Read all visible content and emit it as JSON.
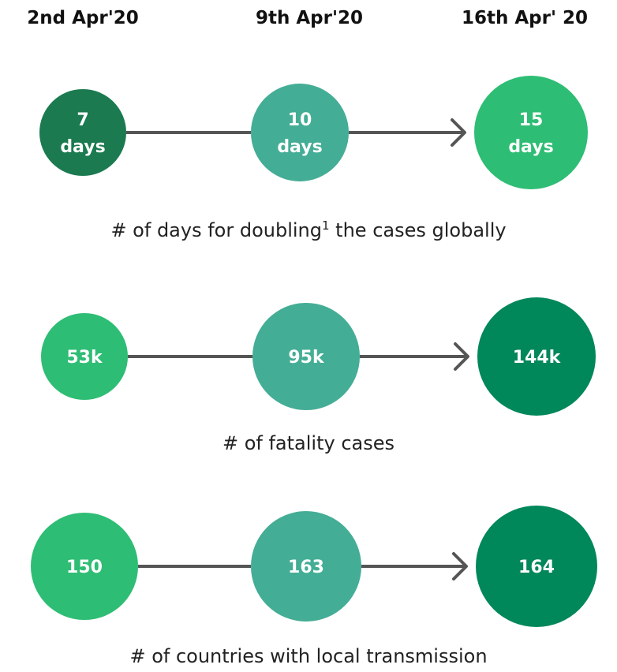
{
  "header": {
    "dates": [
      "2nd Apr'20",
      "9th Apr'20",
      "16th Apr' 20"
    ]
  },
  "rows": [
    {
      "circles": [
        [
          "7",
          "days"
        ],
        [
          "10",
          "days"
        ],
        [
          "15",
          "days"
        ]
      ],
      "caption": {
        "before": "# of days for doubling",
        "sup": "1",
        "after": " the cases globally"
      }
    },
    {
      "circles": [
        [
          "53k"
        ],
        [
          "95k"
        ],
        [
          "144k"
        ]
      ],
      "caption": {
        "before": "# of fatality cases"
      }
    },
    {
      "circles": [
        [
          "150"
        ],
        [
          "163"
        ],
        [
          "164"
        ]
      ],
      "caption": {
        "before": "# of countries with local transmission"
      }
    }
  ]
}
